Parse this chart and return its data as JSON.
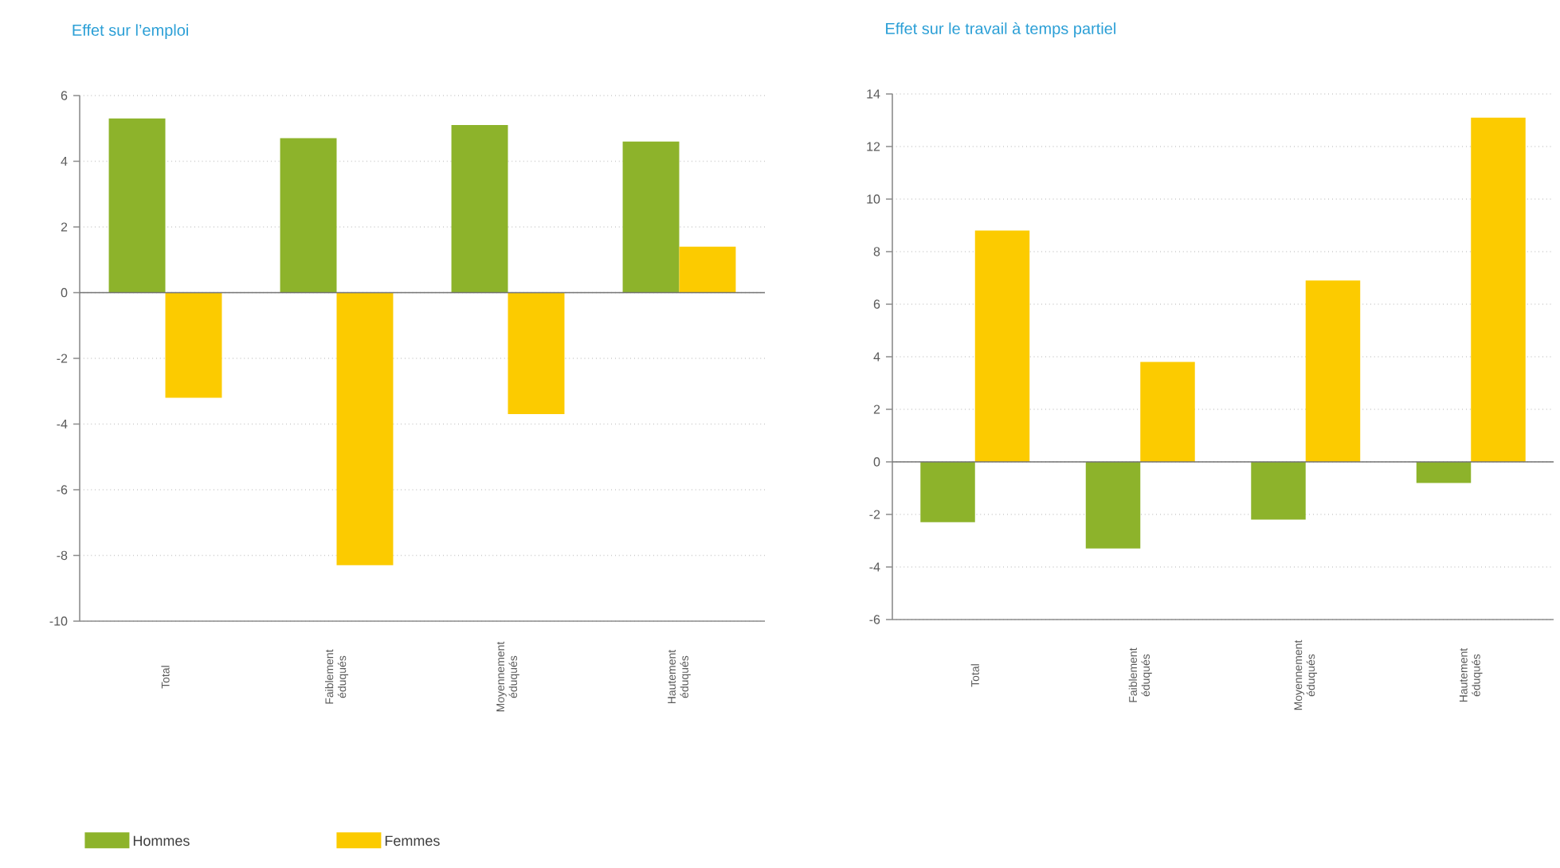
{
  "chart_data": [
    {
      "type": "bar",
      "title": "Effet sur l’emploi",
      "categories": [
        "Total",
        "Faiblement éduqués",
        "Moyennement éduqués",
        "Hautement éduqués"
      ],
      "series": [
        {
          "name": "Hommes",
          "color": "#8db32b",
          "values": [
            5.3,
            4.7,
            5.1,
            4.6
          ]
        },
        {
          "name": "Femmes",
          "color": "#fccb00",
          "values": [
            -3.2,
            -8.3,
            -3.7,
            1.4
          ]
        }
      ],
      "ylim": [
        -10,
        6
      ],
      "yticks": [
        -10,
        -8,
        -6,
        -4,
        -2,
        0,
        2,
        4,
        6
      ],
      "grid": "y",
      "legend": "bottom"
    },
    {
      "type": "bar",
      "title": "Effet sur le travail à temps partiel",
      "categories": [
        "Total",
        "Faiblement éduqués",
        "Moyennement éduqués",
        "Hautement éduqués"
      ],
      "series": [
        {
          "color": "#8db32b",
          "values": [
            -2.3,
            -3.3,
            -2.2,
            -0.8
          ]
        },
        {
          "color": "#fccb00",
          "values": [
            8.8,
            3.8,
            6.9,
            13.1
          ]
        }
      ],
      "ylim": [
        -6,
        14
      ],
      "yticks": [
        -6,
        -4,
        -2,
        0,
        2,
        4,
        6,
        8,
        10,
        12,
        14
      ],
      "grid": "y"
    }
  ]
}
